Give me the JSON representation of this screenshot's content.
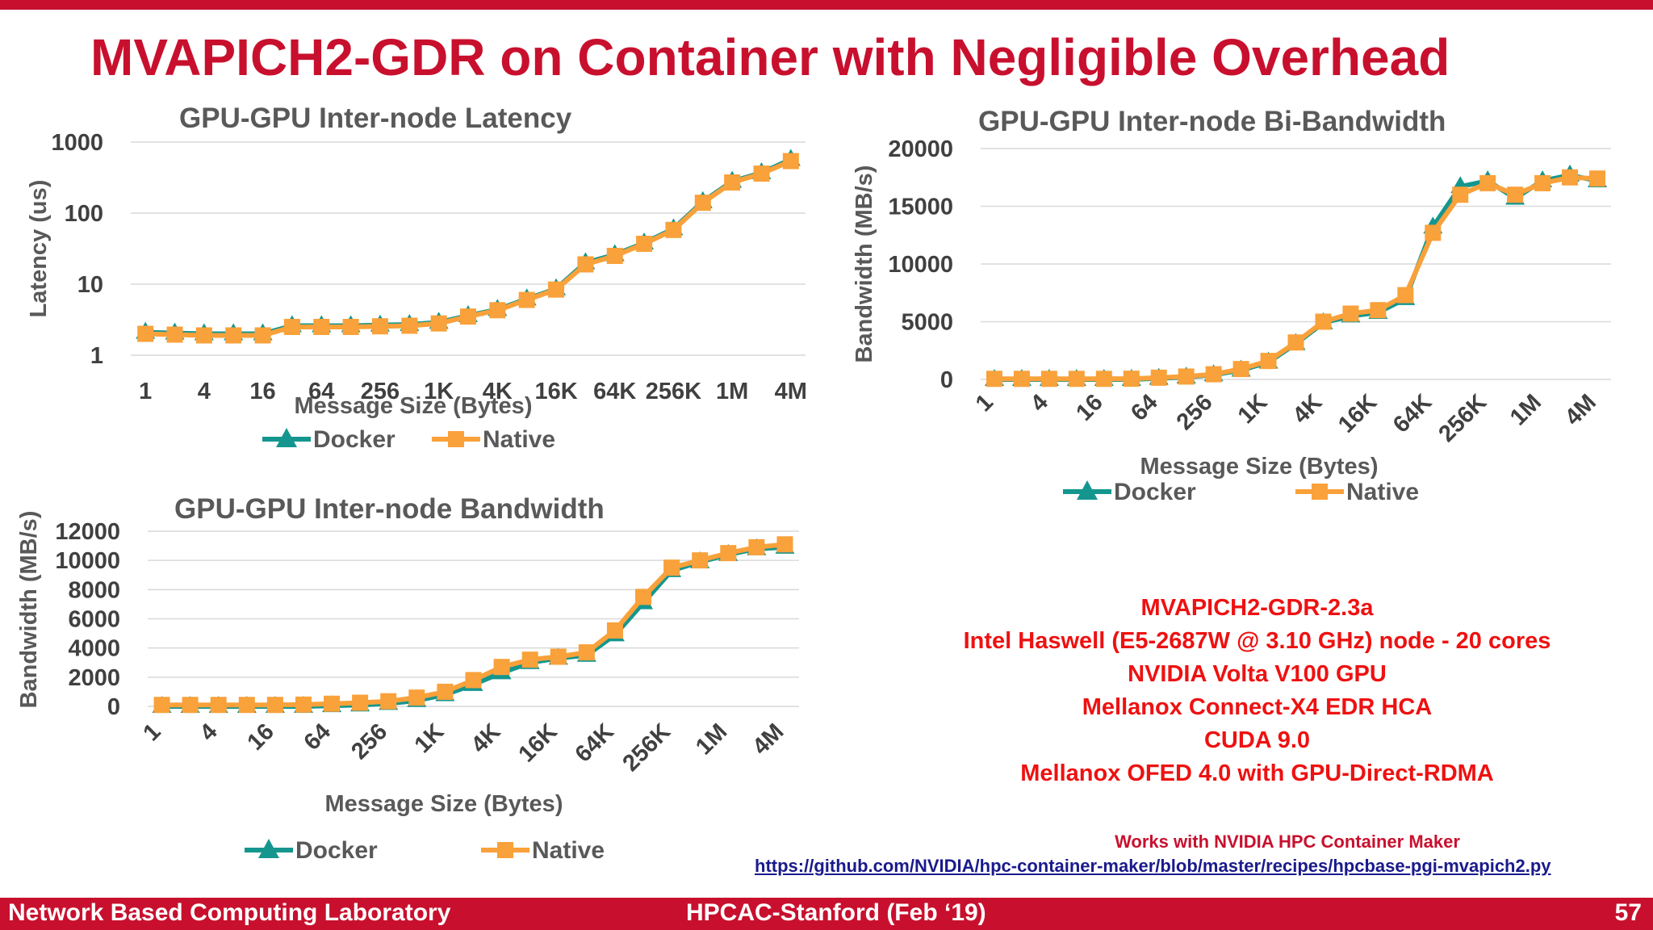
{
  "title": "MVAPICH2-GDR on Container with Negligible Overhead",
  "colors": {
    "accent": "#c8102e",
    "docker": "#14968f",
    "native": "#f9a13a"
  },
  "chart_data": [
    {
      "id": "latency",
      "type": "line",
      "title": "GPU-GPU Inter-node Latency",
      "xlabel": "Message Size (Bytes)",
      "ylabel": "Latency (us)",
      "yscale": "log",
      "ylim": [
        1,
        1000
      ],
      "yticks": [
        "1",
        "10",
        "100",
        "1000"
      ],
      "legend_position": "bottom",
      "grid": true,
      "categories": [
        "1",
        "2",
        "4",
        "8",
        "16",
        "32",
        "64",
        "128",
        "256",
        "512",
        "1K",
        "2K",
        "4K",
        "8K",
        "16K",
        "32K",
        "64K",
        "128K",
        "256K",
        "512K",
        "1M",
        "2M",
        "4M"
      ],
      "x_tick_labels": [
        "1",
        "4",
        "16",
        "64",
        "256",
        "1K",
        "4K",
        "16K",
        "64K",
        "256K",
        "1M",
        "4M"
      ],
      "series": [
        {
          "name": "Docker",
          "values": [
            2.1,
            2.05,
            2.0,
            2.0,
            2.0,
            2.6,
            2.6,
            2.6,
            2.65,
            2.7,
            2.9,
            3.6,
            4.4,
            6.2,
            8.6,
            20,
            26,
            38,
            60,
            145,
            280,
            370,
            570
          ]
        },
        {
          "name": "Native",
          "values": [
            2.0,
            1.95,
            1.9,
            1.9,
            1.9,
            2.5,
            2.5,
            2.5,
            2.55,
            2.6,
            2.8,
            3.5,
            4.3,
            6.0,
            8.4,
            19,
            25,
            37,
            58,
            140,
            270,
            360,
            540
          ]
        }
      ]
    },
    {
      "id": "bi-bandwidth",
      "type": "line",
      "title": "GPU-GPU Inter-node Bi-Bandwidth",
      "xlabel": "Message Size (Bytes)",
      "ylabel": "Bandwidth (MB/s)",
      "ylim": [
        0,
        20000
      ],
      "yticks": [
        "0",
        "5000",
        "10000",
        "15000",
        "20000"
      ],
      "legend_position": "bottom",
      "grid": true,
      "categories": [
        "1",
        "2",
        "4",
        "8",
        "16",
        "32",
        "64",
        "128",
        "256",
        "512",
        "1K",
        "2K",
        "4K",
        "8K",
        "16K",
        "32K",
        "64K",
        "128K",
        "256K",
        "512K",
        "1M",
        "2M",
        "4M"
      ],
      "x_tick_labels": [
        "1",
        "4",
        "16",
        "64",
        "256",
        "1K",
        "4K",
        "16K",
        "64K",
        "256K",
        "1M",
        "4M"
      ],
      "series": [
        {
          "name": "Docker",
          "values": [
            0,
            0,
            0,
            0,
            0,
            0,
            100,
            200,
            400,
            800,
            1500,
            3100,
            4900,
            5500,
            5800,
            7000,
            13200,
            16700,
            17200,
            15700,
            17200,
            17700,
            17200
          ]
        },
        {
          "name": "Native",
          "values": [
            50,
            50,
            50,
            50,
            50,
            60,
            150,
            250,
            450,
            900,
            1600,
            3200,
            5000,
            5700,
            6000,
            7300,
            12700,
            16000,
            17000,
            16000,
            17000,
            17500,
            17400
          ]
        }
      ]
    },
    {
      "id": "bandwidth",
      "type": "line",
      "title": "GPU-GPU Inter-node Bandwidth",
      "xlabel": "Message Size (Bytes)",
      "ylabel": "Bandwidth (MB/s)",
      "ylim": [
        0,
        12000
      ],
      "yticks": [
        "0",
        "2000",
        "4000",
        "6000",
        "8000",
        "10000",
        "12000"
      ],
      "legend_position": "bottom",
      "grid": true,
      "categories": [
        "1",
        "2",
        "4",
        "8",
        "16",
        "32",
        "64",
        "128",
        "256",
        "512",
        "1K",
        "2K",
        "4K",
        "8K",
        "16K",
        "32K",
        "64K",
        "128K",
        "256K",
        "512K",
        "1M",
        "2M",
        "4M"
      ],
      "x_tick_labels": [
        "1",
        "4",
        "16",
        "64",
        "256",
        "1K",
        "4K",
        "16K",
        "64K",
        "256K",
        "1M",
        "4M"
      ],
      "series": [
        {
          "name": "Docker",
          "values": [
            0,
            0,
            0,
            0,
            0,
            0,
            50,
            100,
            200,
            400,
            800,
            1500,
            2300,
            3000,
            3300,
            3500,
            4900,
            7100,
            9300,
            9900,
            10400,
            10800,
            10900
          ]
        },
        {
          "name": "Native",
          "values": [
            100,
            100,
            100,
            100,
            100,
            120,
            180,
            250,
            350,
            600,
            1000,
            1800,
            2700,
            3200,
            3400,
            3700,
            5200,
            7500,
            9500,
            10000,
            10500,
            10900,
            11100
          ]
        }
      ]
    }
  ],
  "specs": [
    "MVAPICH2-GDR-2.3a",
    "Intel Haswell  (E5-2687W @ 3.10 GHz) node - 20 cores",
    "NVIDIA Volta V100 GPU",
    "Mellanox Connect-X4 EDR HCA",
    "CUDA 9.0",
    "Mellanox OFED 4.0 with GPU-Direct-RDMA"
  ],
  "container_note": "Works with NVIDIA HPC Container Maker",
  "container_link": "https://github.com/NVIDIA/hpc-container-maker/blob/master/recipes/hpcbase-pgi-mvapich2.py",
  "footer": {
    "left": "Network Based Computing Laboratory",
    "center": "HPCAC-Stanford (Feb ‘19)",
    "right": "57"
  }
}
